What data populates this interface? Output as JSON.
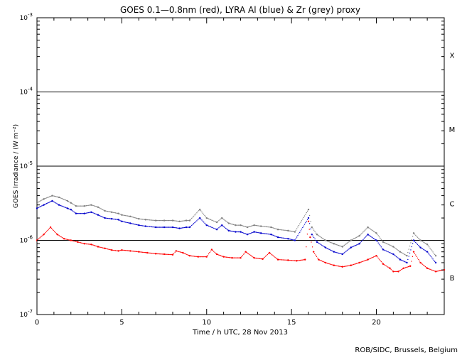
{
  "chart_data": {
    "type": "scatter",
    "title": "GOES 0.1—0.8nm (red), LYRA Al (blue) & Zr (grey) proxy",
    "xlabel": "Time / h UTC, 28 Nov 2013",
    "ylabel": "GOES Irradiance / (W m⁻²)",
    "xlim": [
      0,
      24
    ],
    "ylim": [
      1e-07,
      0.001
    ],
    "y_scale": "log",
    "x_ticks": [
      0,
      5,
      10,
      15,
      20
    ],
    "x_tick_labels": [
      "0",
      "5",
      "10",
      "15",
      "20"
    ],
    "y_ticks": [
      {
        "value": 1e-07,
        "base": "10",
        "exp": "-7"
      },
      {
        "value": 1e-06,
        "base": "10",
        "exp": "-6"
      },
      {
        "value": 1e-05,
        "base": "10",
        "exp": "-5"
      },
      {
        "value": 0.0001,
        "base": "10",
        "exp": "-4"
      },
      {
        "value": 0.001,
        "base": "10",
        "exp": "-3"
      }
    ],
    "flare_class_lines": [
      1e-06,
      1e-05,
      0.0001
    ],
    "flare_classes": [
      {
        "label": "X",
        "value": 0.000316
      },
      {
        "label": "M",
        "value": 3.16e-05
      },
      {
        "label": "C",
        "value": 3.16e-06
      },
      {
        "label": "B",
        "value": 3.16e-07
      }
    ],
    "colors": {
      "goes": "#ff0000",
      "lyra_al": "#0000cc",
      "lyra_zr": "#808080",
      "axes": "#000000"
    },
    "series": [
      {
        "name": "GOES 0.1-0.8nm",
        "color": "#ff0000",
        "x": [
          0,
          0.4,
          0.8,
          1.2,
          1.6,
          2.0,
          2.4,
          2.8,
          3.2,
          3.6,
          4.0,
          4.4,
          4.8,
          5.0,
          5.5,
          6.0,
          6.5,
          7.0,
          7.5,
          8.0,
          8.2,
          8.6,
          9.0,
          9.5,
          10.0,
          10.3,
          10.6,
          11.0,
          11.5,
          12.0,
          12.3,
          12.8,
          13.3,
          13.7,
          14.2,
          14.8,
          15.3,
          15.8,
          16.0,
          16.1,
          16.3,
          16.6,
          17.0,
          17.5,
          18.0,
          18.5,
          19.0,
          19.5,
          20.0,
          20.4,
          20.8,
          21.0,
          21.3,
          21.6,
          22.0,
          22.2,
          22.6,
          23.0,
          23.5,
          24.0
        ],
        "values": [
          1e-06,
          1.2e-06,
          1.5e-06,
          1.2e-06,
          1.05e-06,
          1e-06,
          9.5e-07,
          9e-07,
          8.8e-07,
          8.2e-07,
          7.8e-07,
          7.4e-07,
          7.2e-07,
          7.4e-07,
          7.2e-07,
          7e-07,
          6.8e-07,
          6.6e-07,
          6.5e-07,
          6.4e-07,
          7.2e-07,
          6.8e-07,
          6.2e-07,
          6e-07,
          6e-07,
          7.5e-07,
          6.5e-07,
          6e-07,
          5.8e-07,
          5.8e-07,
          7e-07,
          5.8e-07,
          5.6e-07,
          6.8e-07,
          5.5e-07,
          5.4e-07,
          5.3e-07,
          5.5e-07,
          1.8e-06,
          1.1e-06,
          7e-07,
          5.5e-07,
          5e-07,
          4.6e-07,
          4.4e-07,
          4.6e-07,
          5e-07,
          5.5e-07,
          6.2e-07,
          4.8e-07,
          4.2e-07,
          3.8e-07,
          3.8e-07,
          4.2e-07,
          4.5e-07,
          7e-07,
          5e-07,
          4.2e-07,
          3.8e-07,
          4e-07
        ]
      },
      {
        "name": "LYRA Al",
        "color": "#0000cc",
        "x": [
          0,
          0.4,
          0.9,
          1.3,
          1.8,
          2.0,
          2.3,
          2.8,
          3.2,
          3.6,
          4.0,
          4.4,
          4.8,
          5.0,
          5.5,
          6.0,
          6.4,
          7.0,
          7.5,
          8.0,
          8.4,
          8.8,
          9.0,
          9.6,
          10.0,
          10.6,
          10.9,
          11.3,
          11.7,
          12.0,
          12.4,
          12.8,
          13.2,
          13.8,
          14.2,
          14.8,
          15.2,
          16.0,
          16.2,
          16.5,
          17.0,
          17.5,
          18.0,
          18.5,
          19.0,
          19.5,
          20.0,
          20.4,
          21.0,
          21.4,
          21.8,
          22.2,
          22.6,
          23.0,
          23.5
        ],
        "values": [
          2.7e-06,
          3e-06,
          3.4e-06,
          3e-06,
          2.7e-06,
          2.6e-06,
          2.3e-06,
          2.3e-06,
          2.4e-06,
          2.2e-06,
          2e-06,
          1.95e-06,
          1.9e-06,
          1.8e-06,
          1.7e-06,
          1.6e-06,
          1.55e-06,
          1.5e-06,
          1.5e-06,
          1.5e-06,
          1.45e-06,
          1.5e-06,
          1.5e-06,
          2e-06,
          1.6e-06,
          1.4e-06,
          1.6e-06,
          1.35e-06,
          1.3e-06,
          1.3e-06,
          1.2e-06,
          1.3e-06,
          1.25e-06,
          1.2e-06,
          1.1e-06,
          1.05e-06,
          1e-06,
          2e-06,
          1.2e-06,
          9.5e-07,
          8e-07,
          7e-07,
          6.5e-07,
          8e-07,
          9e-07,
          1.2e-06,
          1e-06,
          7.5e-07,
          6.5e-07,
          5.5e-07,
          5e-07,
          1e-06,
          8e-07,
          7e-07,
          5e-07
        ]
      },
      {
        "name": "LYRA Zr",
        "color": "#808080",
        "x": [
          0,
          0.4,
          0.9,
          1.3,
          1.8,
          2.0,
          2.3,
          2.8,
          3.2,
          3.6,
          4.0,
          4.4,
          4.8,
          5.0,
          5.5,
          6.0,
          6.4,
          7.0,
          7.5,
          8.0,
          8.4,
          8.8,
          9.0,
          9.6,
          10.0,
          10.6,
          10.9,
          11.3,
          11.7,
          12.0,
          12.4,
          12.8,
          13.2,
          13.8,
          14.2,
          14.8,
          15.2,
          16.0,
          16.2,
          16.5,
          17.0,
          17.5,
          18.0,
          18.5,
          19.0,
          19.5,
          20.0,
          20.4,
          21.0,
          21.4,
          21.8,
          22.2,
          22.6,
          23.0,
          23.5
        ],
        "values": [
          3.2e-06,
          3.6e-06,
          4e-06,
          3.8e-06,
          3.4e-06,
          3.2e-06,
          2.9e-06,
          2.9e-06,
          3e-06,
          2.8e-06,
          2.5e-06,
          2.4e-06,
          2.3e-06,
          2.2e-06,
          2.1e-06,
          1.95e-06,
          1.9e-06,
          1.85e-06,
          1.85e-06,
          1.85e-06,
          1.8e-06,
          1.85e-06,
          1.85e-06,
          2.6e-06,
          2e-06,
          1.75e-06,
          2e-06,
          1.7e-06,
          1.6e-06,
          1.6e-06,
          1.5e-06,
          1.6e-06,
          1.55e-06,
          1.5e-06,
          1.4e-06,
          1.35e-06,
          1.3e-06,
          2.6e-06,
          1.5e-06,
          1.2e-06,
          1e-06,
          9e-07,
          8.2e-07,
          1e-06,
          1.15e-06,
          1.5e-06,
          1.25e-06,
          9.5e-07,
          8.2e-07,
          7e-07,
          6.2e-07,
          1.25e-06,
          1e-06,
          8.8e-07,
          6.2e-07
        ]
      }
    ]
  },
  "footer": {
    "credit": "ROB/SIDC, Brussels, Belgium"
  }
}
